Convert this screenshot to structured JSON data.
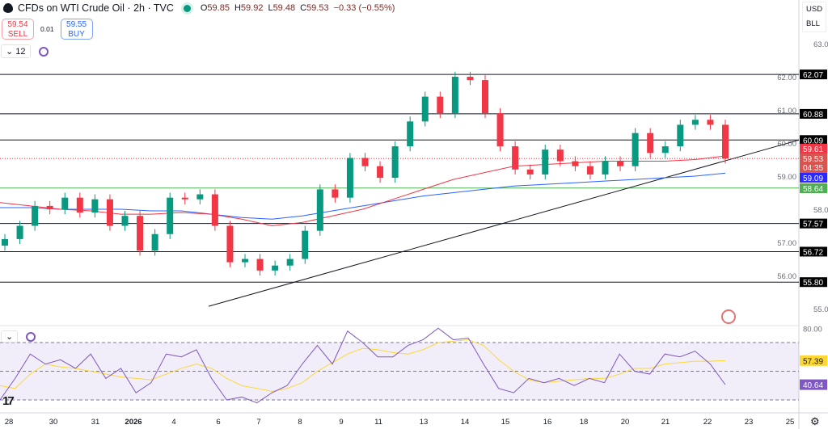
{
  "header": {
    "title": "CFDs on WTI Crude Oil · 2h · TVC",
    "open_label": "O",
    "open": "59.85",
    "high_label": "H",
    "high": "59.92",
    "low_label": "L",
    "low": "59.48",
    "close_label": "C",
    "close": "59.53",
    "change": "−0.33 (−0.55%)",
    "status_color": "#089981"
  },
  "trade": {
    "sell_price": "59.54",
    "sell_label": "SELL",
    "spread": "0.01",
    "buy_price": "59.55",
    "buy_label": "BUY"
  },
  "indicators": {
    "count": "12"
  },
  "axis": {
    "currency": "USD",
    "unit": "BLL",
    "settings_icon": "gear-icon"
  },
  "colors": {
    "up": "#089981",
    "down": "#f23645",
    "ma_fast": "#f23645",
    "ma_slow": "#2962ff",
    "support": "#4caf50",
    "rsi": "#7e57c2",
    "rsi_signal": "#fdd835"
  },
  "chart_data": {
    "type": "candlestick",
    "ylim": [
      54.6,
      63.3
    ],
    "y_ticks": [
      "63.00",
      "62.00",
      "61.00",
      "60.00",
      "59.00",
      "58.00",
      "57.00",
      "56.00",
      "55.00"
    ],
    "x_ticks": [
      "28",
      "30",
      "31",
      "2026",
      "4",
      "6",
      "7",
      "8",
      "9",
      "11",
      "13",
      "14",
      "15",
      "16",
      "18",
      "20",
      "21",
      "22",
      "23",
      "25"
    ],
    "closes": [
      57.1,
      57.5,
      58.1,
      58.0,
      58.35,
      57.9,
      58.3,
      57.5,
      57.8,
      56.75,
      57.25,
      58.35,
      58.3,
      58.45,
      57.5,
      56.4,
      56.5,
      56.15,
      56.3,
      56.5,
      57.35,
      58.6,
      58.35,
      59.55,
      59.3,
      58.95,
      59.9,
      60.65,
      61.4,
      60.9,
      62.0,
      61.9,
      60.9,
      59.9,
      59.2,
      59.05,
      59.8,
      59.45,
      59.3,
      59.05,
      59.45,
      59.3,
      60.3,
      59.7,
      59.9,
      60.55,
      60.7,
      60.55,
      59.53
    ],
    "first_open": 56.9,
    "ma_fast": [
      58.2,
      58.1,
      58.0,
      57.95,
      57.85,
      57.85,
      57.9,
      57.85,
      57.7,
      57.5,
      57.6,
      57.8,
      58.0,
      58.3,
      58.6,
      58.9,
      59.1,
      59.3,
      59.35,
      59.4,
      59.45,
      59.45,
      59.45,
      59.5,
      59.61
    ],
    "ma_slow": [
      58.05,
      58.05,
      58.0,
      58.0,
      58.0,
      57.95,
      57.95,
      57.85,
      57.75,
      57.7,
      57.8,
      57.95,
      58.1,
      58.25,
      58.4,
      58.5,
      58.6,
      58.7,
      58.75,
      58.8,
      58.85,
      58.9,
      58.95,
      59.0,
      59.09
    ],
    "levels": [
      62.07,
      60.88,
      60.09,
      57.57,
      56.72,
      55.8
    ],
    "support_level": 58.64,
    "trendline": {
      "start": 55.07,
      "end": 60.09
    },
    "price_labels": {
      "ma_fast": "59.61",
      "last": "59.53",
      "countdown": "04:35",
      "ma_slow": "59.09",
      "support": "58.64",
      "levels": [
        "62.07",
        "60.88",
        "60.09",
        "57.57",
        "56.72",
        "55.80"
      ]
    },
    "rsi": {
      "ylim": [
        20,
        82
      ],
      "tick": "80.00",
      "bands": [
        70,
        50,
        30
      ],
      "values": [
        30,
        45,
        62,
        55,
        58,
        52,
        62,
        45,
        52,
        35,
        42,
        62,
        60,
        65,
        45,
        30,
        32,
        28,
        35,
        40,
        55,
        68,
        55,
        78,
        70,
        60,
        60,
        68,
        72,
        80,
        72,
        73,
        55,
        38,
        35,
        45,
        42,
        45,
        40,
        45,
        42,
        62,
        50,
        48,
        62,
        60,
        64,
        55,
        40.64
      ],
      "signal": [
        40,
        38,
        48,
        55,
        53,
        52,
        50,
        48,
        46,
        45,
        44,
        48,
        52,
        55,
        52,
        45,
        40,
        38,
        36,
        38,
        42,
        50,
        56,
        62,
        66,
        65,
        63,
        62,
        65,
        70,
        71,
        72,
        68,
        58,
        50,
        44,
        42,
        43,
        44,
        45,
        45,
        48,
        52,
        52,
        55,
        56,
        57,
        57,
        57.39
      ],
      "rsi_label": "40.64",
      "signal_label": "57.39"
    }
  }
}
